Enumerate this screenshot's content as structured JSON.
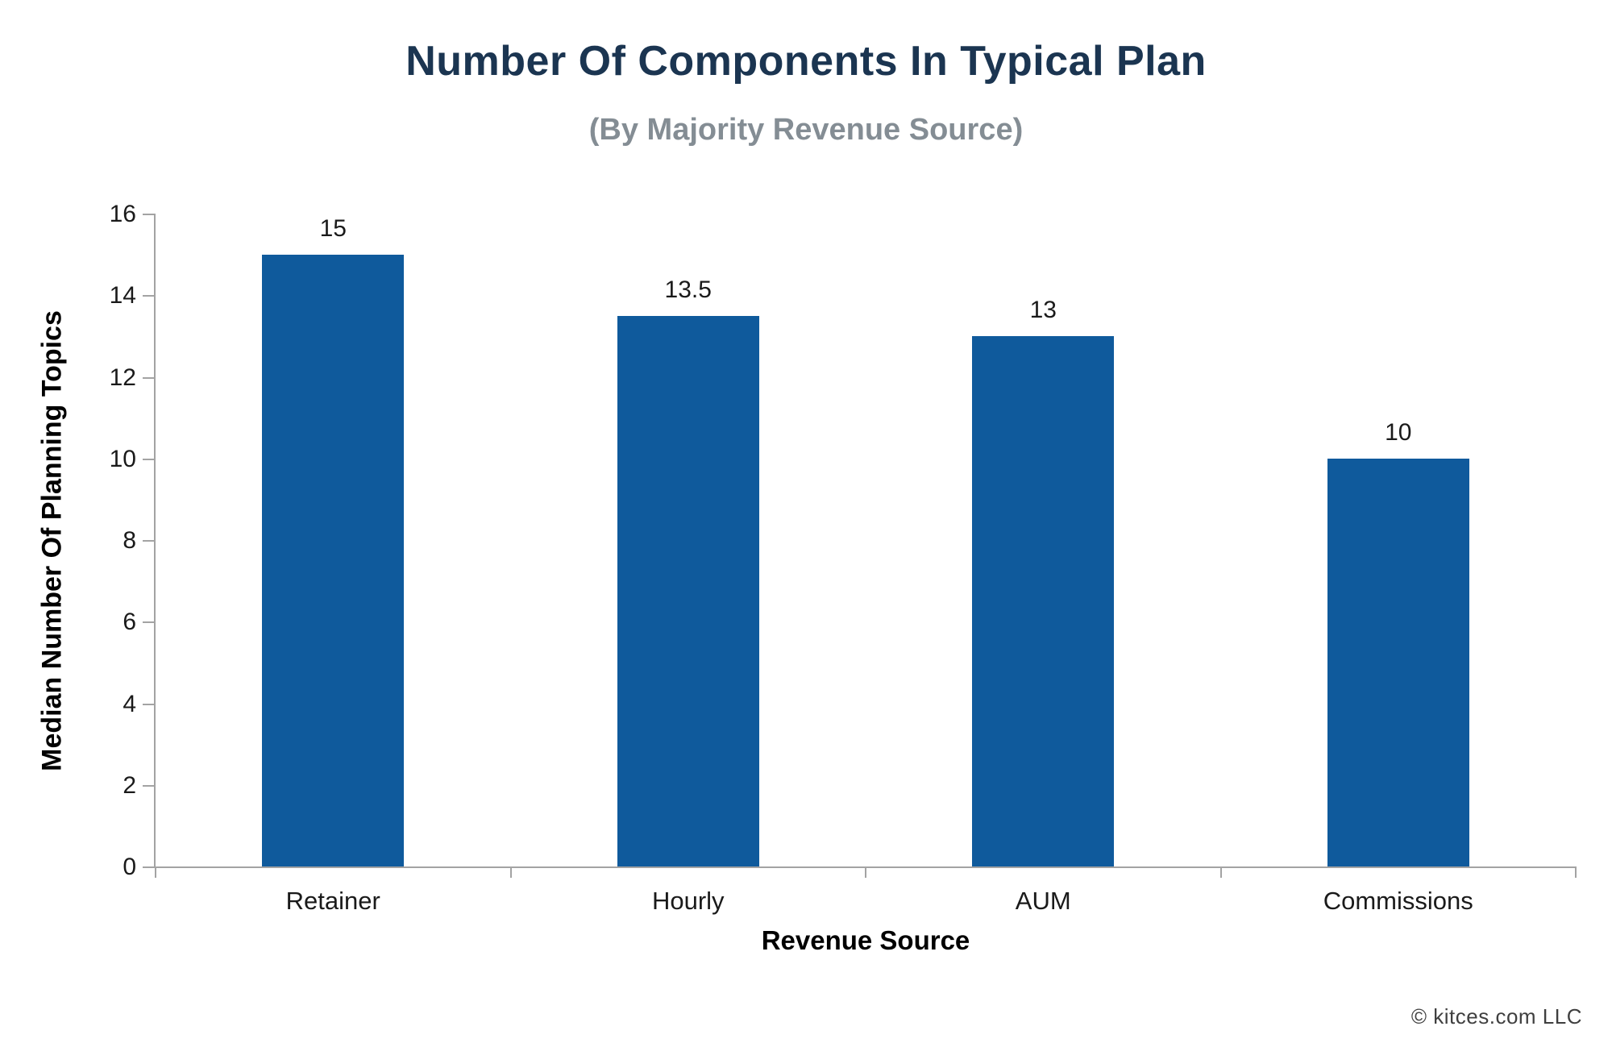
{
  "chart_data": {
    "type": "bar",
    "title": "Number Of Components In Typical Plan",
    "subtitle": "(By Majority Revenue Source)",
    "xlabel": "Revenue Source",
    "ylabel": "Median Number Of Planning Topics",
    "categories": [
      "Retainer",
      "Hourly",
      "AUM",
      "Commissions"
    ],
    "values": [
      15,
      13.5,
      13,
      10
    ],
    "value_labels": [
      "15",
      "13.5",
      "13",
      "10"
    ],
    "ylim": [
      0,
      16
    ],
    "ytick_step": 2,
    "grid": false,
    "legend_position": "none",
    "colors": {
      "bar": "#0F5A9C",
      "axis": "#A3A3A3",
      "title": "#1B3551",
      "subtitle": "#848D94",
      "tick_text": "#1A1A1A"
    }
  },
  "footer": {
    "copyright": "© kitces.com LLC"
  }
}
